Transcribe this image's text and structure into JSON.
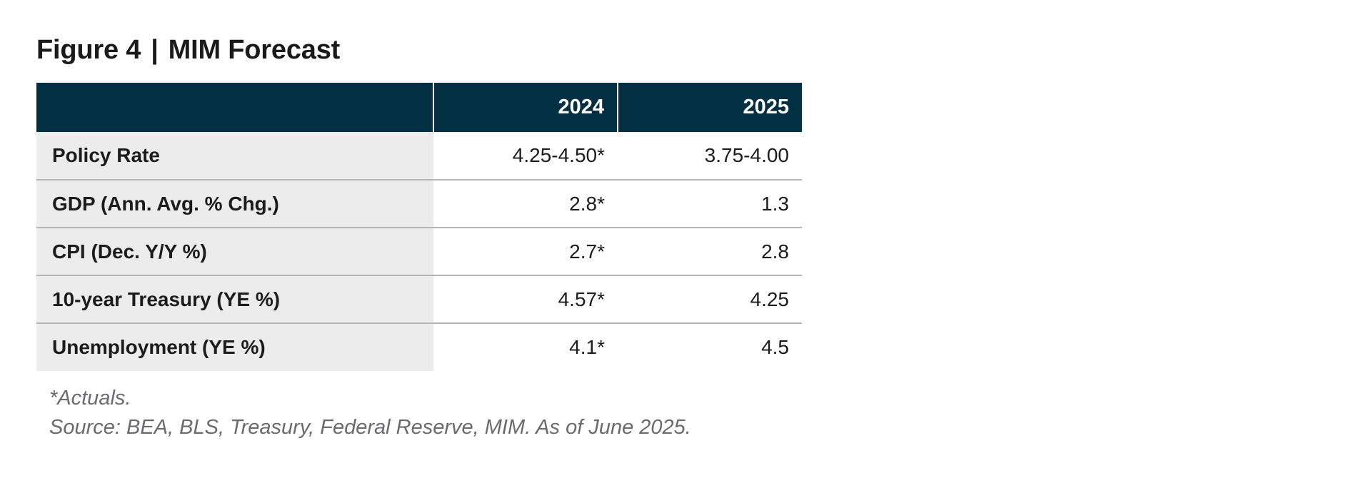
{
  "figure": {
    "label": "Figure 4",
    "separator": "|",
    "name": "MIM Forecast"
  },
  "table": {
    "columns": [
      "2024",
      "2025"
    ],
    "rows": [
      {
        "label": "Policy Rate",
        "values": [
          "4.25-4.50*",
          "3.75-4.00"
        ]
      },
      {
        "label": "GDP (Ann. Avg. % Chg.)",
        "values": [
          "2.8*",
          "1.3"
        ]
      },
      {
        "label": "CPI (Dec. Y/Y %)",
        "values": [
          "2.7*",
          "2.8"
        ]
      },
      {
        "label": "10-year Treasury (YE %)",
        "values": [
          "4.57*",
          "4.25"
        ]
      },
      {
        "label": "Unemployment (YE %)",
        "values": [
          "4.1*",
          "4.5"
        ]
      }
    ]
  },
  "notes": {
    "footnote": "*Actuals.",
    "source": "Source: BEA, BLS, Treasury, Federal Reserve, MIM. As of June 2025."
  },
  "colors": {
    "header_bg": "#023042",
    "label_bg": "#ececed",
    "note_text": "#6b6b6e"
  }
}
